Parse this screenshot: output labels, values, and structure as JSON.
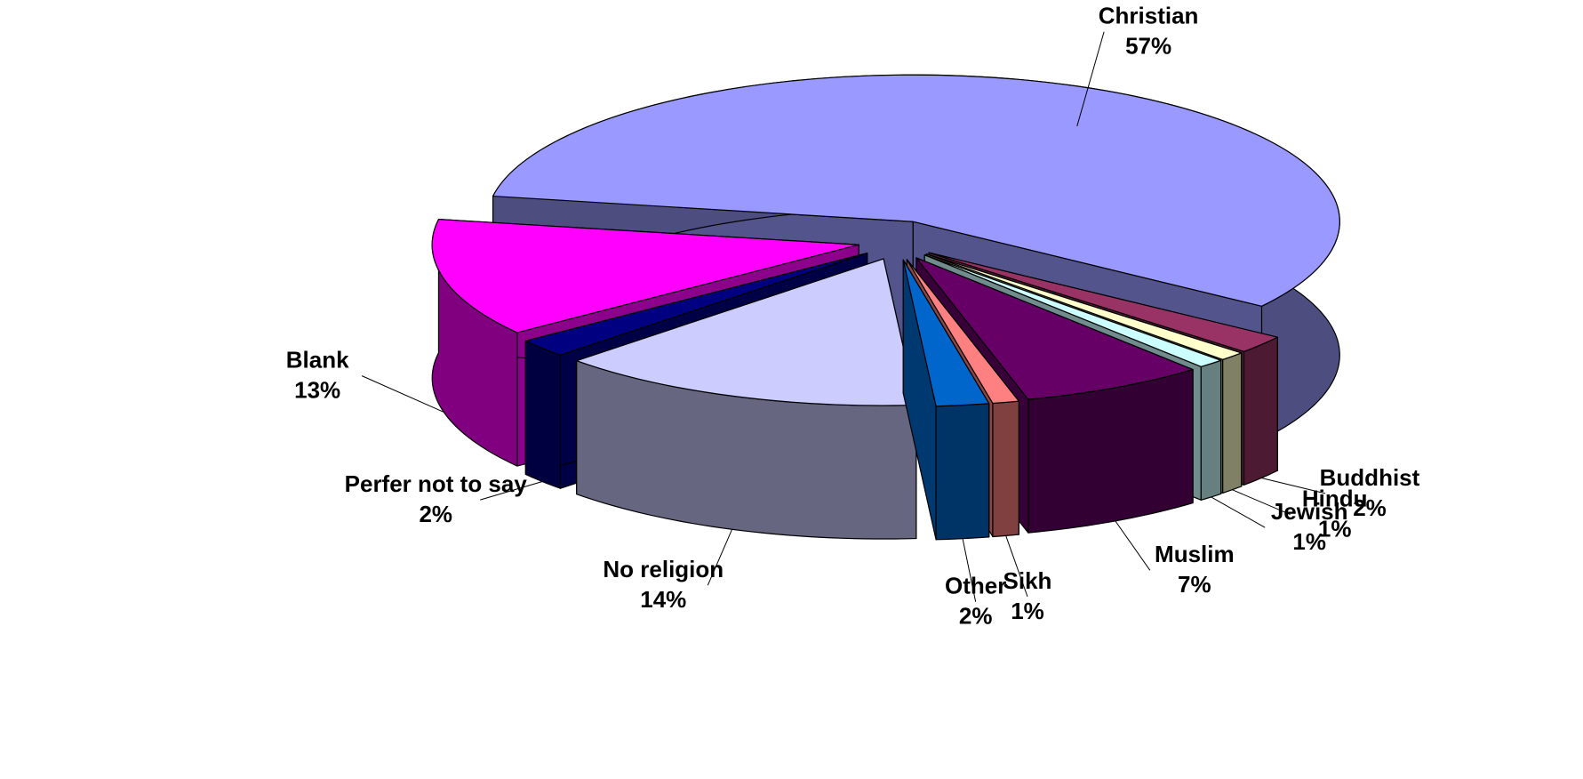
{
  "chart_data": {
    "type": "pie3d",
    "categories": [
      "Christian",
      "Buddhist",
      "Hindu",
      "Jewish",
      "Muslim",
      "Sikh",
      "Other",
      "No religion",
      "Perfer not to say",
      "Blank"
    ],
    "values": [
      57,
      2,
      1,
      1,
      7,
      1,
      2,
      14,
      2,
      13
    ],
    "value_labels": [
      "57%",
      "2%",
      "1%",
      "1%",
      "7%",
      "1%",
      "2%",
      "14%",
      "2%",
      "13%"
    ],
    "colors": [
      "#9999ff",
      "#993366",
      "#ffffcc",
      "#ccffff",
      "#660066",
      "#ff8080",
      "#0066cc",
      "#ccccff",
      "#000080",
      "#ff00ff"
    ]
  }
}
